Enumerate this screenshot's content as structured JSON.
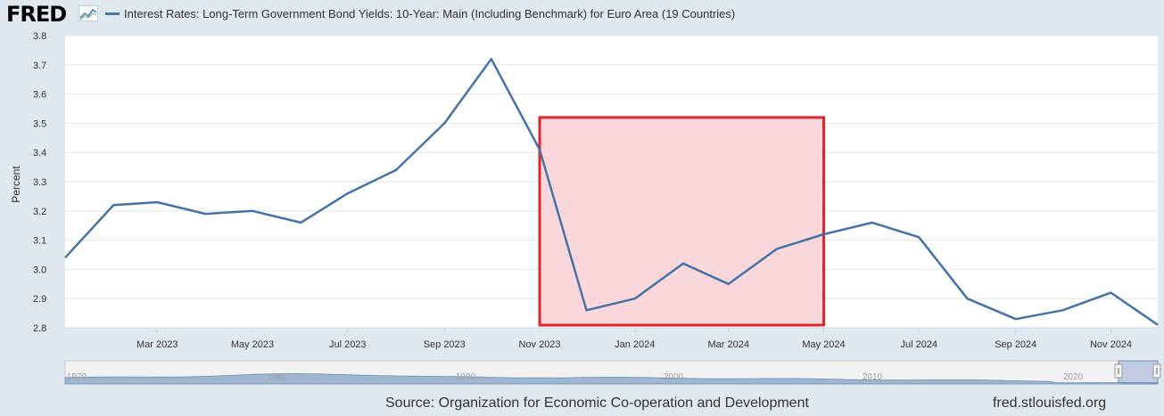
{
  "header": {
    "logo_text": "FRED",
    "legend_label": "Interest Rates: Long-Term Government Bond Yields: 10-Year: Main (Including Benchmark) for Euro Area (19 Countries)"
  },
  "footer": {
    "source": "Source: Organization for Economic Co-operation and Development",
    "url": "fred.stlouisfed.org"
  },
  "colors": {
    "line": "#4572a7",
    "highlight_fill": "#f9d7da",
    "highlight_stroke": "#e0252c",
    "grid": "#e6e6e6",
    "plot_bg": "#ffffff",
    "page_bg": "#e1e9f0",
    "navigator_fill": "#9fb6d0"
  },
  "chart_data": {
    "type": "line",
    "title": "",
    "ylabel": "Percent",
    "xlabel": "",
    "ylim": [
      2.8,
      3.8
    ],
    "yticks": [
      2.8,
      2.9,
      3.0,
      3.1,
      3.2,
      3.3,
      3.4,
      3.5,
      3.6,
      3.7,
      3.8
    ],
    "ytick_labels": [
      "2.8",
      "2.9",
      "3.0",
      "3.1",
      "3.2",
      "3.3",
      "3.4",
      "3.5",
      "3.6",
      "3.7",
      "3.8"
    ],
    "xlim": [
      "2023-01-01",
      "2024-12-01"
    ],
    "xticks": [
      "2023-03-01",
      "2023-05-01",
      "2023-07-01",
      "2023-09-01",
      "2023-11-01",
      "2024-01-01",
      "2024-03-01",
      "2024-05-01",
      "2024-07-01",
      "2024-09-01",
      "2024-11-01"
    ],
    "xtick_labels": [
      "Mar 2023",
      "May 2023",
      "Jul 2023",
      "Sep 2023",
      "Nov 2023",
      "Jan 2024",
      "Mar 2024",
      "May 2024",
      "Jul 2024",
      "Sep 2024",
      "Nov 2024"
    ],
    "grid": true,
    "legend_position": "top-left",
    "series": [
      {
        "name": "Interest Rates: Long-Term Government Bond Yields: 10-Year: Main (Including Benchmark) for Euro Area (19 Countries)",
        "x": [
          "2023-01-01",
          "2023-02-01",
          "2023-03-01",
          "2023-04-01",
          "2023-05-01",
          "2023-06-01",
          "2023-07-01",
          "2023-08-01",
          "2023-09-01",
          "2023-10-01",
          "2023-11-01",
          "2023-12-01",
          "2024-01-01",
          "2024-02-01",
          "2024-03-01",
          "2024-04-01",
          "2024-05-01",
          "2024-06-01",
          "2024-07-01",
          "2024-08-01",
          "2024-09-01",
          "2024-10-01",
          "2024-11-01",
          "2024-12-01"
        ],
        "values": [
          3.04,
          3.22,
          3.23,
          3.19,
          3.2,
          3.16,
          3.26,
          3.34,
          3.5,
          3.72,
          3.41,
          2.86,
          2.9,
          3.02,
          2.95,
          3.07,
          3.12,
          3.16,
          3.11,
          2.9,
          2.83,
          2.86,
          2.92,
          2.81
        ]
      }
    ],
    "highlight": {
      "x_start": "2023-11-01",
      "x_end": "2024-05-01",
      "y_start": 2.8,
      "y_end": 3.52
    },
    "navigator": {
      "tick_labels": [
        "1970",
        "1980",
        "1990",
        "2000",
        "2010",
        "2020"
      ]
    }
  }
}
